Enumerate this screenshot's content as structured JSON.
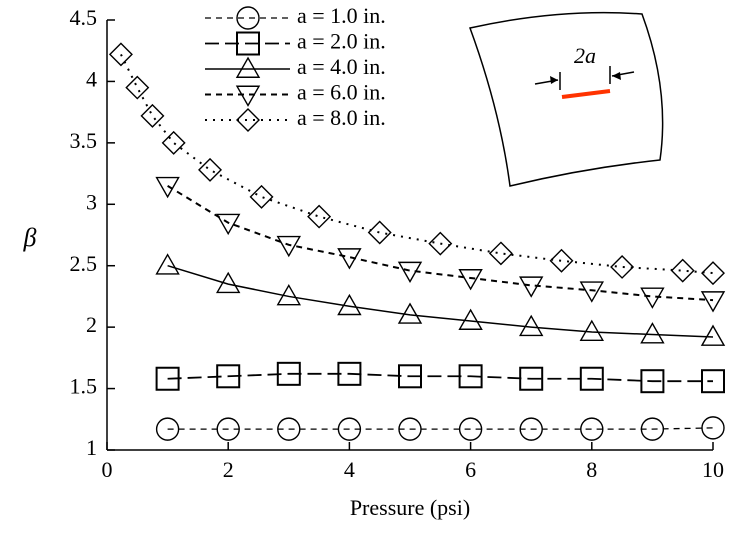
{
  "chart_data": {
    "type": "line",
    "x_label": "Pressure (psi)",
    "y_label": "β",
    "xlim": [
      0,
      10
    ],
    "xticks": [
      0,
      2,
      4,
      6,
      8,
      10
    ],
    "ylim": [
      1,
      4.5
    ],
    "yticks": [
      1,
      1.5,
      2,
      2.5,
      3,
      3.5,
      4,
      4.5
    ],
    "annotation": "2a",
    "annotation_color": "#ff3300",
    "series": [
      {
        "name": "a = 1.0 in.",
        "color": "#000000",
        "marker": "circle",
        "line_style": "dashed",
        "x": [
          1,
          2,
          3,
          4,
          5,
          6,
          7,
          8,
          9,
          10
        ],
        "values": [
          1.17,
          1.17,
          1.17,
          1.17,
          1.17,
          1.17,
          1.17,
          1.17,
          1.17,
          1.18
        ]
      },
      {
        "name": "a = 2.0 in.",
        "color": "#000000",
        "marker": "square",
        "line_style": "long-dashed",
        "x": [
          1,
          2,
          3,
          4,
          5,
          6,
          7,
          8,
          9,
          10
        ],
        "values": [
          1.58,
          1.6,
          1.62,
          1.62,
          1.6,
          1.6,
          1.58,
          1.58,
          1.56,
          1.56
        ]
      },
      {
        "name": "a = 4.0 in.",
        "color": "#000000",
        "marker": "triangle",
        "line_style": "solid",
        "x": [
          1,
          2,
          3,
          4,
          5,
          6,
          7,
          8,
          9,
          10
        ],
        "values": [
          2.5,
          2.35,
          2.25,
          2.17,
          2.1,
          2.05,
          2.0,
          1.96,
          1.94,
          1.92
        ]
      },
      {
        "name": "a = 6.0 in.",
        "color": "#000000",
        "marker": "triangle-down",
        "line_style": "bold-dashed",
        "x": [
          1,
          2,
          3,
          4,
          5,
          6,
          7,
          8,
          9,
          10
        ],
        "values": [
          3.15,
          2.85,
          2.67,
          2.57,
          2.46,
          2.4,
          2.34,
          2.3,
          2.25,
          2.22
        ]
      },
      {
        "name": "a = 8.0 in.",
        "color": "#000000",
        "marker": "diamond",
        "line_style": "dotted",
        "x": [
          0.23,
          0.5,
          0.75,
          1.1,
          1.7,
          2.55,
          3.5,
          4.5,
          5.5,
          6.5,
          7.5,
          8.5,
          9.5,
          10
        ],
        "values": [
          4.22,
          3.95,
          3.72,
          3.5,
          3.28,
          3.06,
          2.9,
          2.77,
          2.68,
          2.6,
          2.54,
          2.49,
          2.46,
          2.44
        ]
      }
    ]
  }
}
